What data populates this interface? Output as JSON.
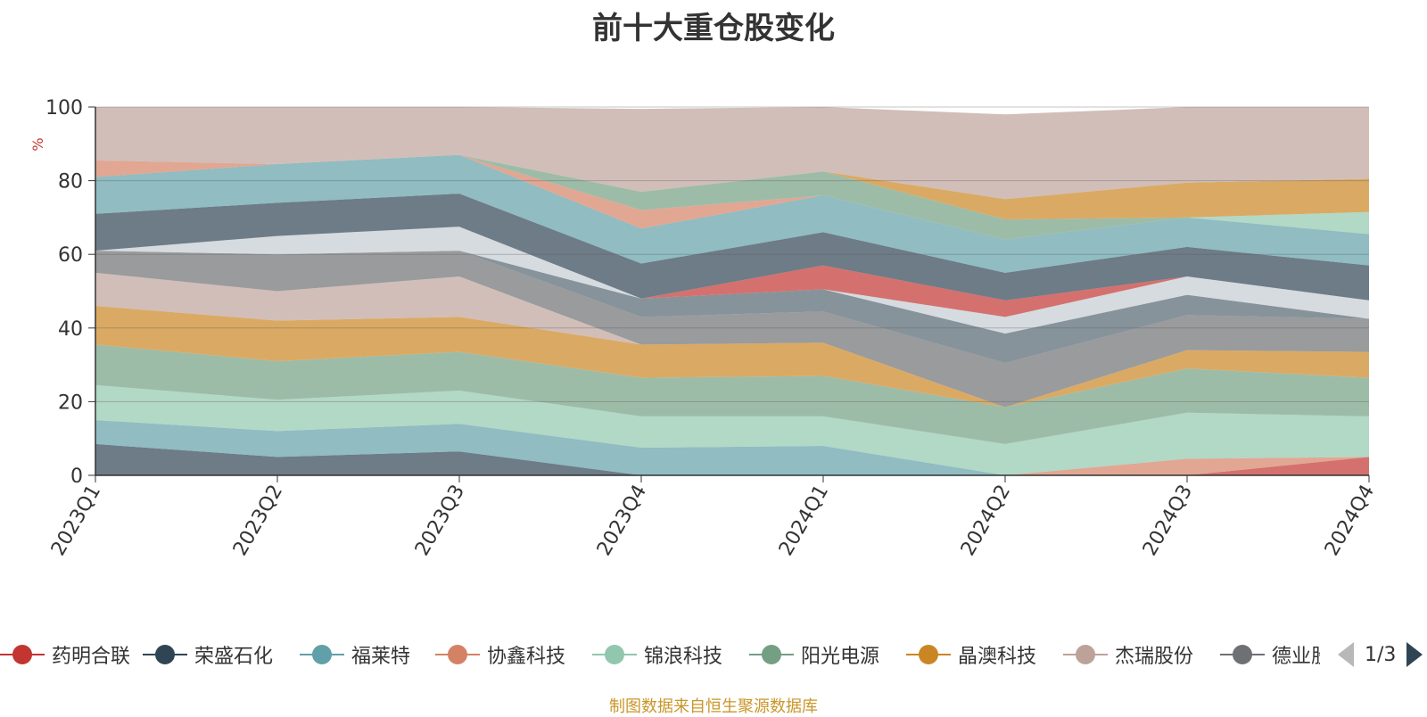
{
  "chart_data": {
    "type": "area",
    "stacked": true,
    "title": "前十大重仓股变化",
    "ylabel": "%",
    "ylim": [
      0,
      100
    ],
    "yticks": [
      0,
      20,
      40,
      60,
      80,
      100
    ],
    "grid": true,
    "categories": [
      "2023Q1",
      "2023Q2",
      "2023Q3",
      "2023Q4",
      "2024Q1",
      "2024Q2",
      "2024Q3",
      "2024Q4"
    ],
    "series": [
      {
        "name": "",
        "color": "#c23531",
        "values": [
          0,
          0,
          0,
          0,
          0,
          0,
          0,
          5
        ]
      },
      {
        "name": "",
        "color": "#d48265",
        "values": [
          0,
          0,
          0,
          0,
          0,
          0,
          4.5,
          0
        ]
      },
      {
        "name": "",
        "color": "#2f4554",
        "values": [
          8.5,
          5,
          6.5,
          0,
          0,
          0,
          0,
          0
        ]
      },
      {
        "name": "",
        "color": "#61a0a8",
        "values": [
          6.5,
          7,
          7.5,
          7.5,
          8,
          0,
          0,
          0
        ]
      },
      {
        "name": "",
        "color": "#91c7ae",
        "values": [
          9.5,
          8.5,
          9,
          8.5,
          8,
          8.5,
          12.5,
          11
        ]
      },
      {
        "name": "",
        "color": "#749f83",
        "values": [
          11,
          10.5,
          10.5,
          10.5,
          11,
          10,
          12,
          10.5
        ]
      },
      {
        "name": "",
        "color": "#ca8622",
        "values": [
          10.5,
          11,
          9.5,
          9,
          9,
          0,
          5,
          7
        ]
      },
      {
        "name": "",
        "color": "#bda29a",
        "values": [
          9,
          8,
          11,
          0,
          0,
          0,
          0,
          0
        ]
      },
      {
        "name": "",
        "color": "#6e7074",
        "values": [
          6,
          10,
          7,
          7.5,
          8.5,
          12,
          9.5,
          9
        ]
      },
      {
        "name": "",
        "color": "#546570",
        "values": [
          0,
          0,
          0,
          5,
          6,
          8,
          5.5,
          0
        ]
      },
      {
        "name": "",
        "color": "#c4ccd3",
        "values": [
          0,
          5,
          6.5,
          0,
          0,
          4.5,
          5,
          5
        ]
      },
      {
        "name": "",
        "color": "#c23531",
        "values": [
          0,
          0,
          0,
          0,
          6.5,
          4.5,
          0,
          0
        ]
      },
      {
        "name": "",
        "color": "#2f4554",
        "values": [
          10,
          9,
          9,
          9.5,
          9,
          7.5,
          8,
          9.5
        ]
      },
      {
        "name": "",
        "color": "#61a0a8",
        "values": [
          10,
          10.5,
          10.5,
          9.5,
          10,
          9,
          8,
          8.5
        ]
      },
      {
        "name": "",
        "color": "#d48265",
        "values": [
          4.5,
          0,
          0,
          5,
          0,
          0,
          0,
          0
        ]
      },
      {
        "name": "",
        "color": "#749f83",
        "values": [
          0,
          0,
          0,
          5,
          6.5,
          5.5,
          0,
          0
        ]
      },
      {
        "name": "",
        "color": "#91c7ae",
        "values": [
          0,
          0,
          0,
          0,
          0,
          0,
          0,
          6
        ]
      },
      {
        "name": "",
        "color": "#ca8622",
        "values": [
          0,
          0,
          0,
          0,
          0,
          5.5,
          9.5,
          9
        ]
      },
      {
        "name": "",
        "color": "#bda29a",
        "values": [
          14.5,
          15.5,
          13,
          22.5,
          17.5,
          23,
          20.5,
          19.5
        ]
      }
    ]
  },
  "legend": {
    "items": [
      {
        "name": "药明合联",
        "color": "#c23531"
      },
      {
        "name": "荣盛石化",
        "color": "#2f4554"
      },
      {
        "name": "福莱特",
        "color": "#61a0a8"
      },
      {
        "name": "协鑫科技",
        "color": "#d48265"
      },
      {
        "name": "锦浪科技",
        "color": "#91c7ae"
      },
      {
        "name": "阳光电源",
        "color": "#749f83"
      },
      {
        "name": "晶澳科技",
        "color": "#ca8622"
      },
      {
        "name": "杰瑞股份",
        "color": "#bda29a"
      },
      {
        "name": "德业股份",
        "color": "#6e7074"
      }
    ],
    "page": "1/3"
  },
  "source_note": "制图数据来自恒生聚源数据库"
}
